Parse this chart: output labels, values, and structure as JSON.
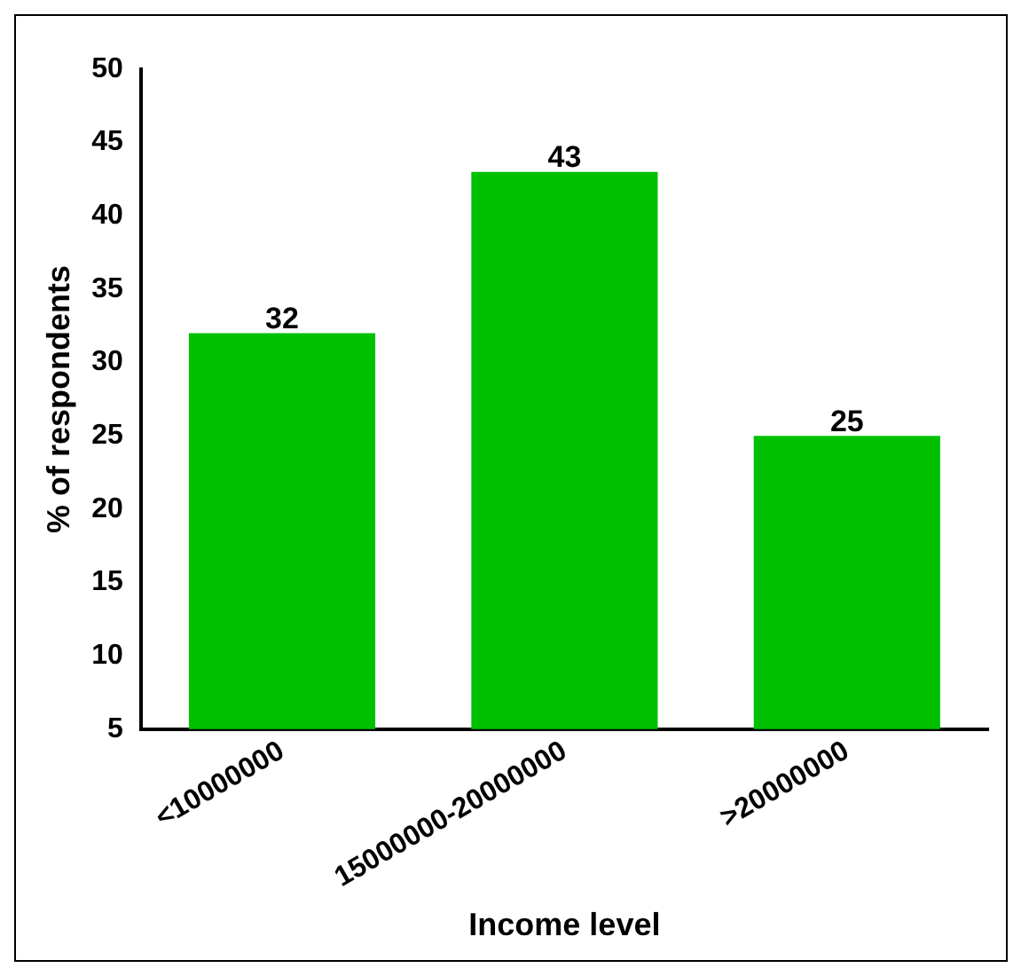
{
  "chart_data": {
    "type": "bar",
    "xlabel": "Income level",
    "ylabel": "% of respondents",
    "categories": [
      "<10000000",
      "15000000-20000000",
      ">20000000"
    ],
    "values": [
      32,
      43,
      25
    ],
    "color": "#00c000",
    "ylim": [
      5,
      50
    ],
    "yticks": [
      5,
      10,
      15,
      20,
      25,
      30,
      35,
      40,
      45,
      50
    ],
    "grid": false,
    "legend": false,
    "data_labels": true
  }
}
